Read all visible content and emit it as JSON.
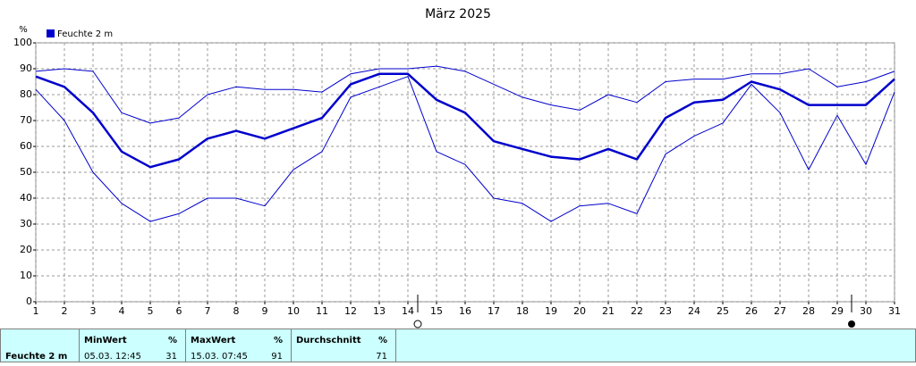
{
  "chart_data": {
    "type": "line",
    "title": "März 2025",
    "y_label": "%",
    "x": [
      1,
      2,
      3,
      4,
      5,
      6,
      7,
      8,
      9,
      10,
      11,
      12,
      13,
      14,
      15,
      16,
      17,
      18,
      19,
      20,
      21,
      22,
      23,
      24,
      25,
      26,
      27,
      28,
      29,
      30,
      31
    ],
    "xlim": [
      1,
      31
    ],
    "xticks": [
      1,
      2,
      3,
      4,
      5,
      6,
      7,
      8,
      9,
      10,
      11,
      12,
      13,
      14,
      15,
      16,
      17,
      18,
      19,
      20,
      21,
      22,
      23,
      24,
      25,
      26,
      27,
      28,
      29,
      30,
      31
    ],
    "ylim": [
      0,
      100
    ],
    "yticks": [
      0,
      10,
      20,
      30,
      40,
      50,
      60,
      70,
      80,
      90,
      100
    ],
    "grid": true,
    "legend": "top-left",
    "series": [
      {
        "name": "Feuchte  2 m",
        "color": "#0000cc",
        "values": [
          87,
          83,
          73,
          58,
          52,
          55,
          63,
          66,
          63,
          67,
          71,
          84,
          88,
          88,
          78,
          73,
          62,
          59,
          56,
          55,
          59,
          55,
          71,
          77,
          78,
          85,
          82,
          76,
          76,
          76,
          86
        ]
      },
      {
        "color": "#0000cc",
        "values": [
          89,
          90,
          89,
          73,
          69,
          71,
          80,
          83,
          82,
          82,
          81,
          88,
          90,
          90,
          91,
          89,
          84,
          79,
          76,
          74,
          80,
          77,
          85,
          86,
          86,
          88,
          88,
          90,
          83,
          85,
          89
        ]
      },
      {
        "color": "#0000cc",
        "values": [
          82,
          70,
          50,
          38,
          31,
          34,
          40,
          40,
          37,
          51,
          58,
          79,
          83,
          87,
          58,
          53,
          40,
          38,
          31,
          37,
          38,
          34,
          57,
          64,
          69,
          84,
          73,
          51,
          72,
          53,
          81
        ]
      }
    ]
  },
  "table": {
    "row_label": "Feuchte  2 m",
    "columns": [
      {
        "header": "MinWert",
        "unit": "%",
        "time": "05.03.  12:45",
        "value": 31
      },
      {
        "header": "MaxWert",
        "unit": "%",
        "time": "15.03.  07:45",
        "value": 91
      },
      {
        "header": "Durchschnitt",
        "unit": "%",
        "value": 71
      }
    ]
  }
}
